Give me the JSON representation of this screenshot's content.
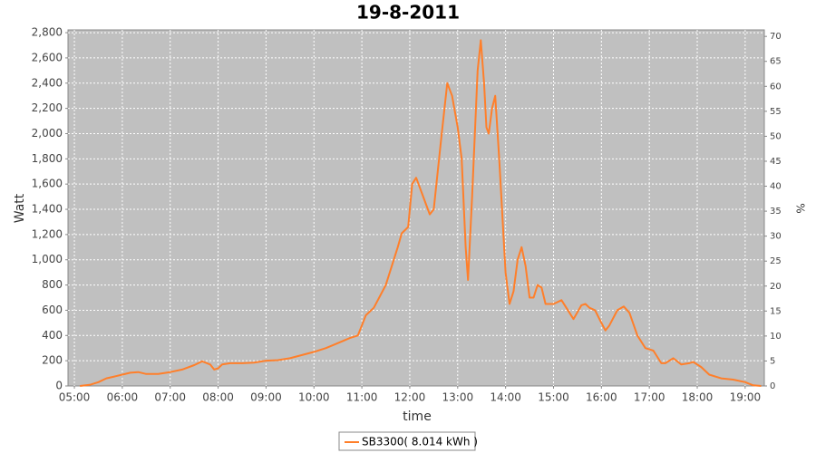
{
  "chart_data": {
    "type": "line",
    "title": "19-8-2011",
    "x_label": "time",
    "y_label": "Watt",
    "y2_label": "%",
    "x": [
      "05:07",
      "05:20",
      "05:30",
      "05:40",
      "05:50",
      "06:00",
      "06:10",
      "06:20",
      "06:30",
      "06:45",
      "07:00",
      "07:15",
      "07:30",
      "07:40",
      "07:50",
      "07:55",
      "08:00",
      "08:05",
      "08:15",
      "08:30",
      "08:45",
      "09:00",
      "09:15",
      "09:30",
      "09:45",
      "10:00",
      "10:15",
      "10:30",
      "10:45",
      "10:55",
      "11:00",
      "11:05",
      "11:15",
      "11:30",
      "11:45",
      "11:50",
      "11:58",
      "12:03",
      "12:08",
      "12:15",
      "12:25",
      "12:30",
      "12:40",
      "12:47",
      "12:53",
      "13:00",
      "13:05",
      "13:10",
      "13:13",
      "13:18",
      "13:25",
      "13:29",
      "13:33",
      "13:36",
      "13:39",
      "13:43",
      "13:47",
      "13:52",
      "14:00",
      "14:05",
      "14:10",
      "14:15",
      "14:20",
      "14:25",
      "14:30",
      "14:35",
      "14:40",
      "14:45",
      "14:50",
      "15:00",
      "15:10",
      "15:20",
      "15:25",
      "15:35",
      "15:40",
      "15:45",
      "15:52",
      "16:00",
      "16:05",
      "16:10",
      "16:20",
      "16:28",
      "16:35",
      "16:45",
      "16:55",
      "17:05",
      "17:15",
      "17:20",
      "17:30",
      "17:40",
      "17:50",
      "17:55",
      "18:05",
      "18:15",
      "18:30",
      "18:45",
      "19:00",
      "19:10",
      "19:20"
    ],
    "series": [
      {
        "name": "SB3300( 8.014 kWh )",
        "color": "#ff7f2a",
        "values": [
          0,
          10,
          30,
          60,
          75,
          90,
          105,
          110,
          95,
          95,
          110,
          130,
          165,
          195,
          170,
          130,
          140,
          170,
          180,
          180,
          185,
          200,
          205,
          220,
          245,
          270,
          300,
          340,
          380,
          400,
          480,
          560,
          620,
          800,
          1100,
          1210,
          1260,
          1600,
          1650,
          1530,
          1360,
          1400,
          2000,
          2400,
          2300,
          2050,
          1800,
          1100,
          840,
          1500,
          2500,
          2740,
          2400,
          2050,
          2000,
          2200,
          2300,
          1800,
          900,
          650,
          750,
          1000,
          1100,
          950,
          700,
          700,
          800,
          780,
          650,
          650,
          680,
          580,
          530,
          640,
          650,
          620,
          600,
          500,
          440,
          480,
          600,
          630,
          580,
          400,
          300,
          280,
          180,
          180,
          220,
          170,
          180,
          190,
          150,
          90,
          60,
          50,
          30,
          5,
          0
        ]
      }
    ],
    "xlim": [
      "04:52",
      "19:24"
    ],
    "xticks": [
      "05:00",
      "06:00",
      "07:00",
      "08:00",
      "09:00",
      "10:00",
      "11:00",
      "12:00",
      "13:00",
      "14:00",
      "15:00",
      "16:00",
      "17:00",
      "18:00",
      "19:00"
    ],
    "ylim": [
      0,
      2822
    ],
    "yticks": [
      0,
      200,
      400,
      600,
      800,
      {
        "value": 1000,
        "label": "1,000"
      },
      {
        "value": 1200,
        "label": "1,200"
      },
      {
        "value": 1400,
        "label": "1,400"
      },
      {
        "value": 1600,
        "label": "1,600"
      },
      {
        "value": 1800,
        "label": "1,800"
      },
      {
        "value": 2000,
        "label": "2,000"
      },
      {
        "value": 2200,
        "label": "2,200"
      },
      {
        "value": 2400,
        "label": "2,400"
      },
      {
        "value": 2600,
        "label": "2,600"
      },
      {
        "value": 2800,
        "label": "2,800"
      }
    ],
    "y2lim": [
      0,
      71.3
    ],
    "y2ticks": [
      0,
      5,
      10,
      15,
      20,
      25,
      30,
      35,
      40,
      45,
      50,
      55,
      60,
      65,
      70
    ],
    "grid": true
  }
}
